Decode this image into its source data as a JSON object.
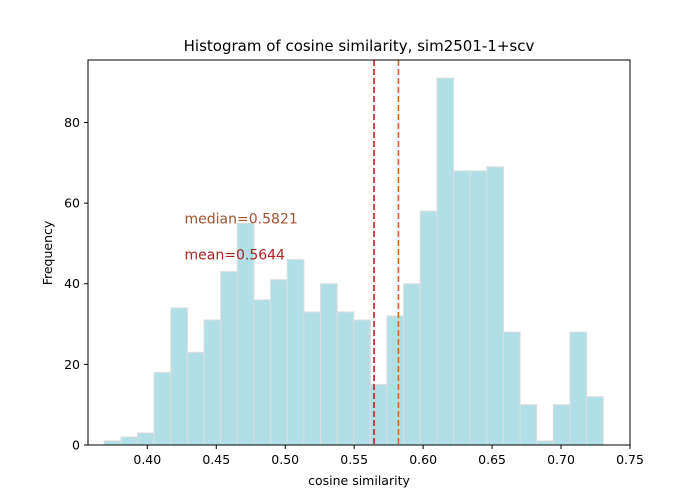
{
  "chart_data": {
    "type": "histogram",
    "title": "Histogram of cosine similarity, sim2501-1+scv",
    "xlabel": "cosine similarity",
    "ylabel": "Frequency",
    "xlim": [
      0.357,
      0.75
    ],
    "ylim": [
      0,
      95.5
    ],
    "xticks": [
      0.4,
      0.45,
      0.5,
      0.55,
      0.6,
      0.65,
      0.7,
      0.75
    ],
    "xtick_labels": [
      "0.40",
      "0.45",
      "0.50",
      "0.55",
      "0.60",
      "0.65",
      "0.70",
      "0.75"
    ],
    "yticks": [
      0,
      20,
      40,
      60,
      80
    ],
    "ytick_labels": [
      "0",
      "20",
      "40",
      "60",
      "80"
    ],
    "bin_start": 0.3688,
    "bin_width": 0.01206,
    "counts": [
      1,
      2,
      3,
      18,
      34,
      23,
      31,
      43,
      55,
      36,
      41,
      46,
      33,
      40,
      33,
      31,
      15,
      32,
      40,
      58,
      91,
      68,
      68,
      69,
      28,
      10,
      1,
      10,
      28,
      12
    ],
    "bar_color": "#b0dfe5",
    "bar_edge_color": "#dddddd",
    "grid": false,
    "annotations": {
      "median": {
        "value": 0.5821,
        "label": "median=0.5821",
        "color": "#d2691e",
        "text_color": "#a0522d",
        "text_x": 0.427,
        "text_y": 55
      },
      "mean": {
        "value": 0.5644,
        "label": "mean=0.5644",
        "color": "#b22222",
        "text_color": "#b22222",
        "text_x": 0.427,
        "text_y": 46
      }
    }
  }
}
